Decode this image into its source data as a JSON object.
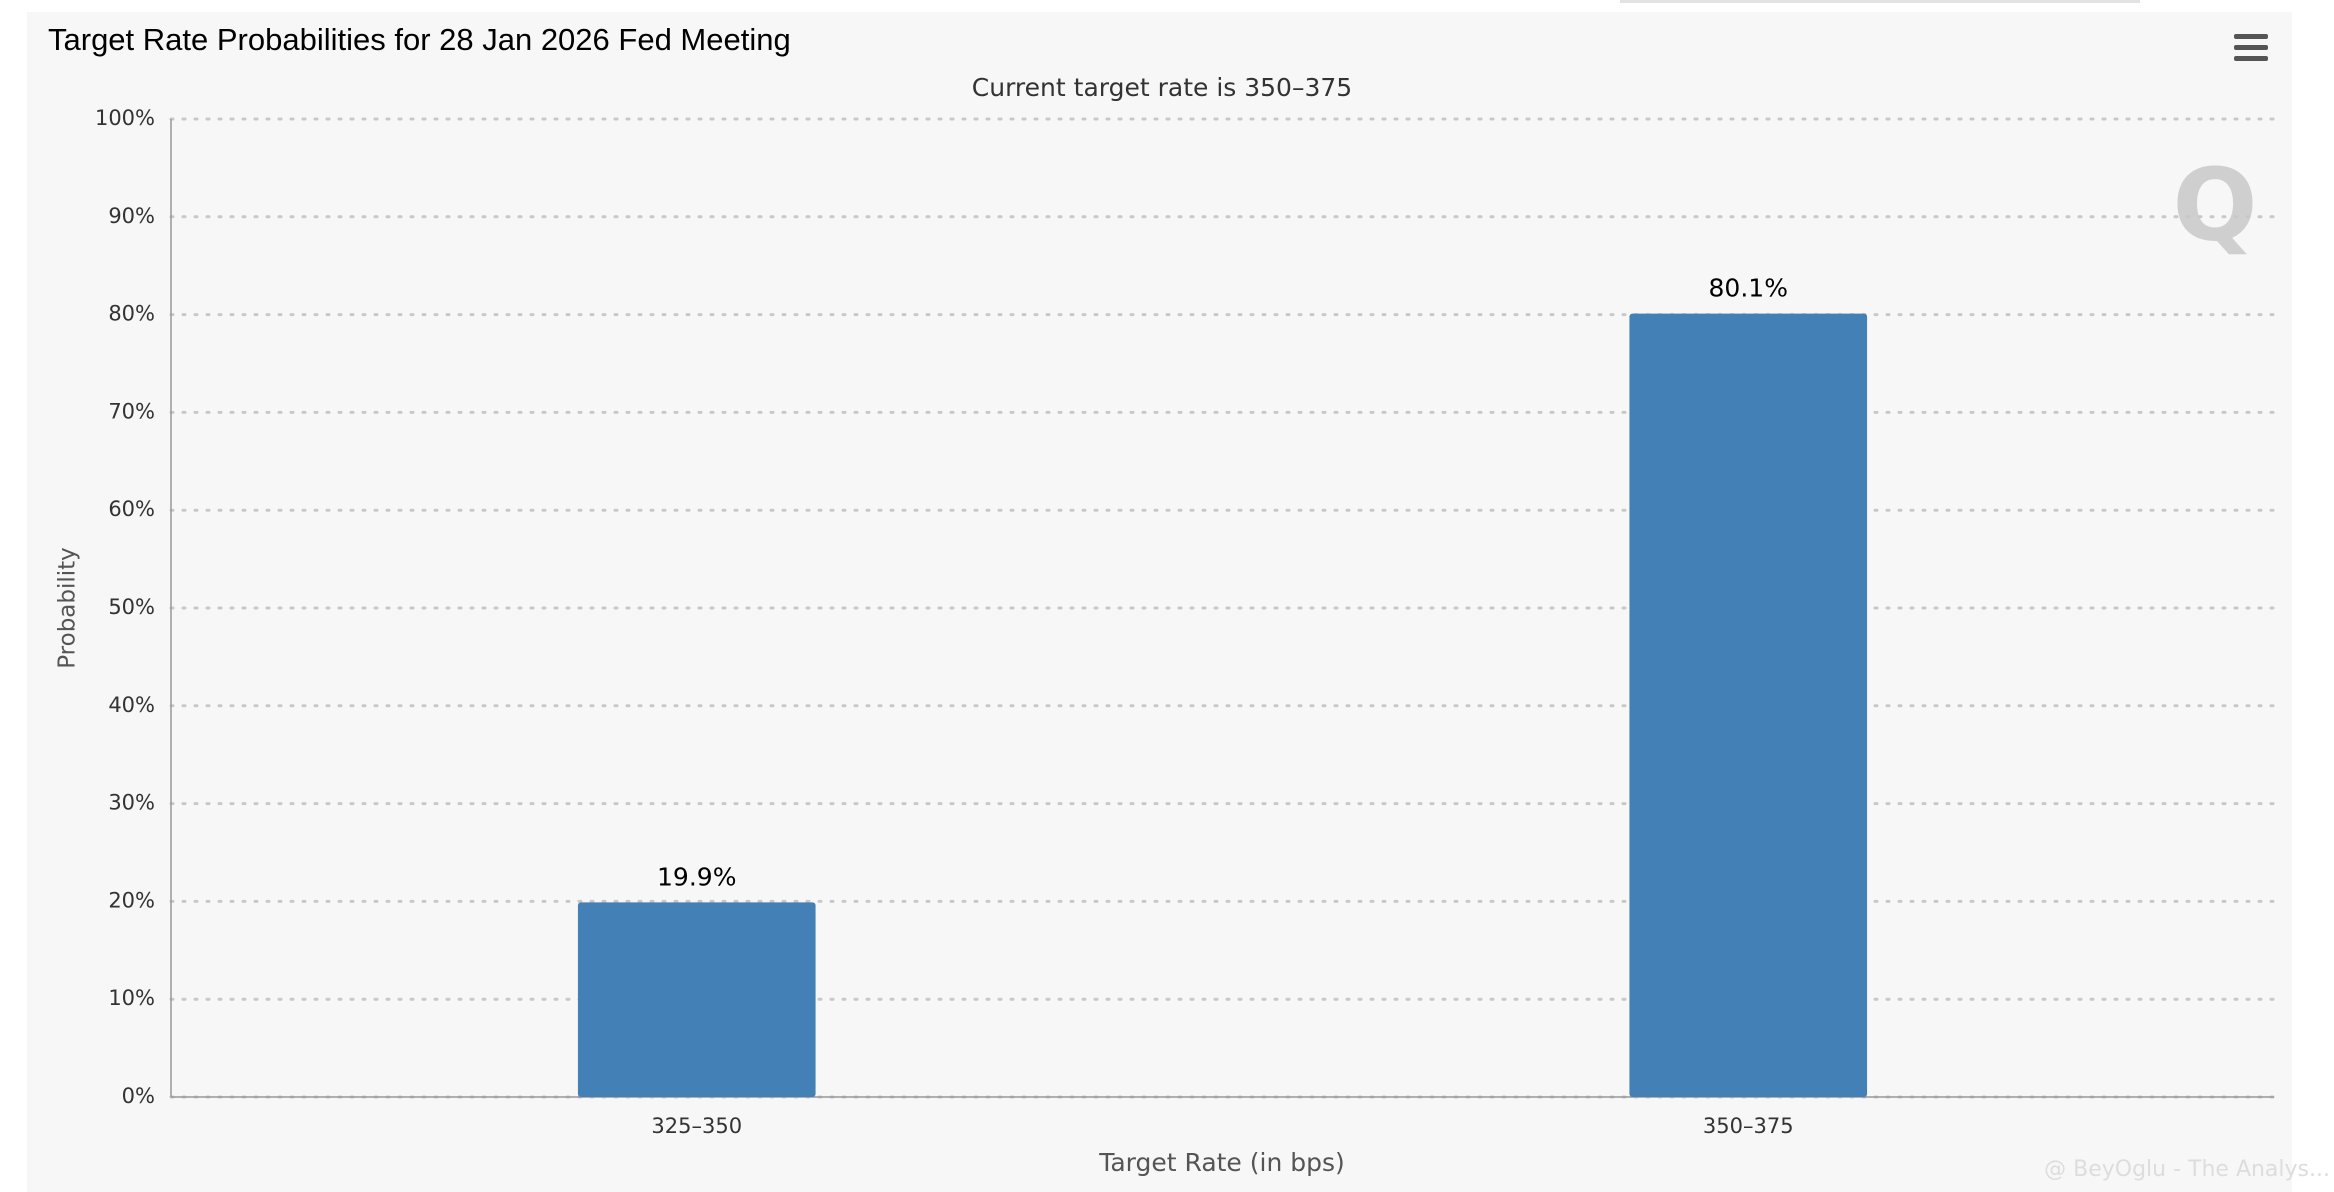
{
  "chart_data": {
    "type": "bar",
    "title": "Target Rate Probabilities for 28 Jan 2026 Fed Meeting",
    "subtitle": "Current target rate is 350–375",
    "x_label": "Target Rate (in bps)",
    "y_label": "Probability",
    "categories": [
      "325–350",
      "350–375"
    ],
    "values": [
      19.9,
      80.1
    ],
    "value_labels": [
      "19.9%",
      "80.1%"
    ],
    "color": "#4380b5",
    "ylim": [
      0,
      100
    ],
    "yticks": [
      {
        "value": 0,
        "label": "0%"
      },
      {
        "value": 10,
        "label": "10%"
      },
      {
        "value": 20,
        "label": "20%"
      },
      {
        "value": 30,
        "label": "30%"
      },
      {
        "value": 40,
        "label": "40%"
      },
      {
        "value": 50,
        "label": "50%"
      },
      {
        "value": 60,
        "label": "60%"
      },
      {
        "value": 70,
        "label": "70%"
      },
      {
        "value": 80,
        "label": "80%"
      },
      {
        "value": 90,
        "label": "90%"
      },
      {
        "value": 100,
        "label": "100%"
      }
    ],
    "grid": true,
    "watermark": "@ BeyOglu - The Analys..."
  }
}
